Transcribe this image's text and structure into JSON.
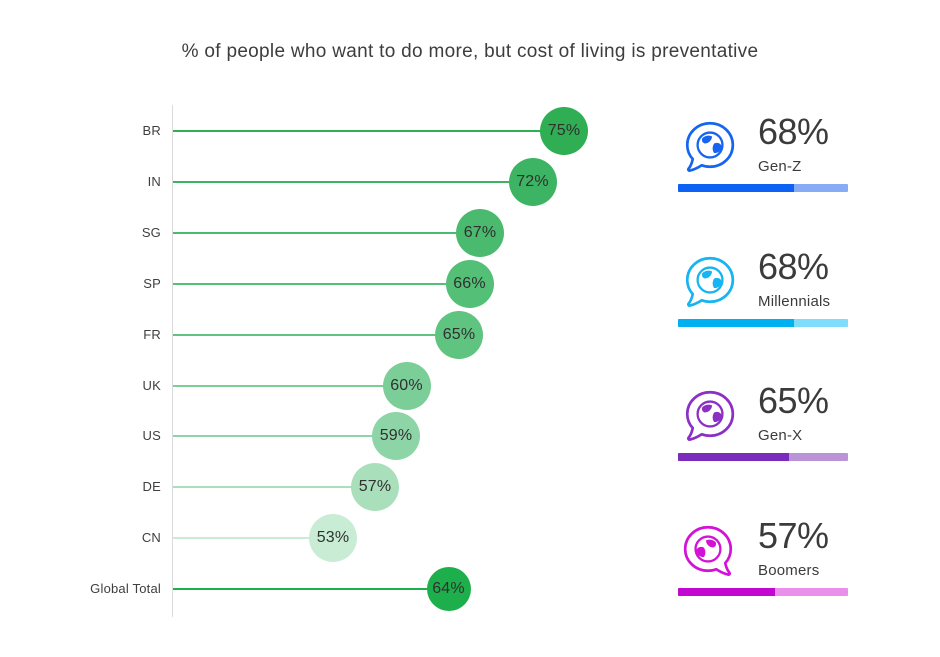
{
  "title": "% of people who want to do more, but cost of living is preventative",
  "chart_data": [
    {
      "id": "countries",
      "type": "bar",
      "subtype": "lollipop",
      "orientation": "horizontal",
      "title": "% of people who want to do more, but cost of living is preventative",
      "categories": [
        "BR",
        "IN",
        "SG",
        "SP",
        "FR",
        "UK",
        "US",
        "DE",
        "CN",
        "Global Total"
      ],
      "values": [
        75,
        72,
        67,
        66,
        65,
        60,
        59,
        57,
        53,
        64
      ],
      "unit": "%",
      "xlim": [
        38,
        80
      ],
      "value_axis_labels_visible": false,
      "grid": false,
      "baseline_color": "#dbdbdb",
      "colors": [
        "#2fae53",
        "#3db463",
        "#4aba6e",
        "#54bf77",
        "#5ec480",
        "#7bce97",
        "#8dd5a6",
        "#a9dfbb",
        "#c9ecd5",
        "#1daf4b"
      ]
    },
    {
      "id": "generations",
      "type": "bar",
      "subtype": "progress",
      "categories": [
        "Gen-Z",
        "Millennials",
        "Gen-X",
        "Boomers"
      ],
      "values": [
        68,
        68,
        65,
        57
      ],
      "unit": "%",
      "max": 100,
      "icon": "globe-speech-bubble-icon",
      "icon_tails": [
        "left",
        "left",
        "left",
        "right"
      ],
      "series_colors": [
        {
          "icon": "#1565f0",
          "fill": "#0d62f4",
          "track": "#88abf5"
        },
        {
          "icon": "#16b5f2",
          "fill": "#00b1f2",
          "track": "#7eddfa"
        },
        {
          "icon": "#8c2fc5",
          "fill": "#7b2cbc",
          "track": "#ba93d9"
        },
        {
          "icon": "#d312d8",
          "fill": "#c208d0",
          "track": "#ea90ec"
        }
      ]
    }
  ]
}
